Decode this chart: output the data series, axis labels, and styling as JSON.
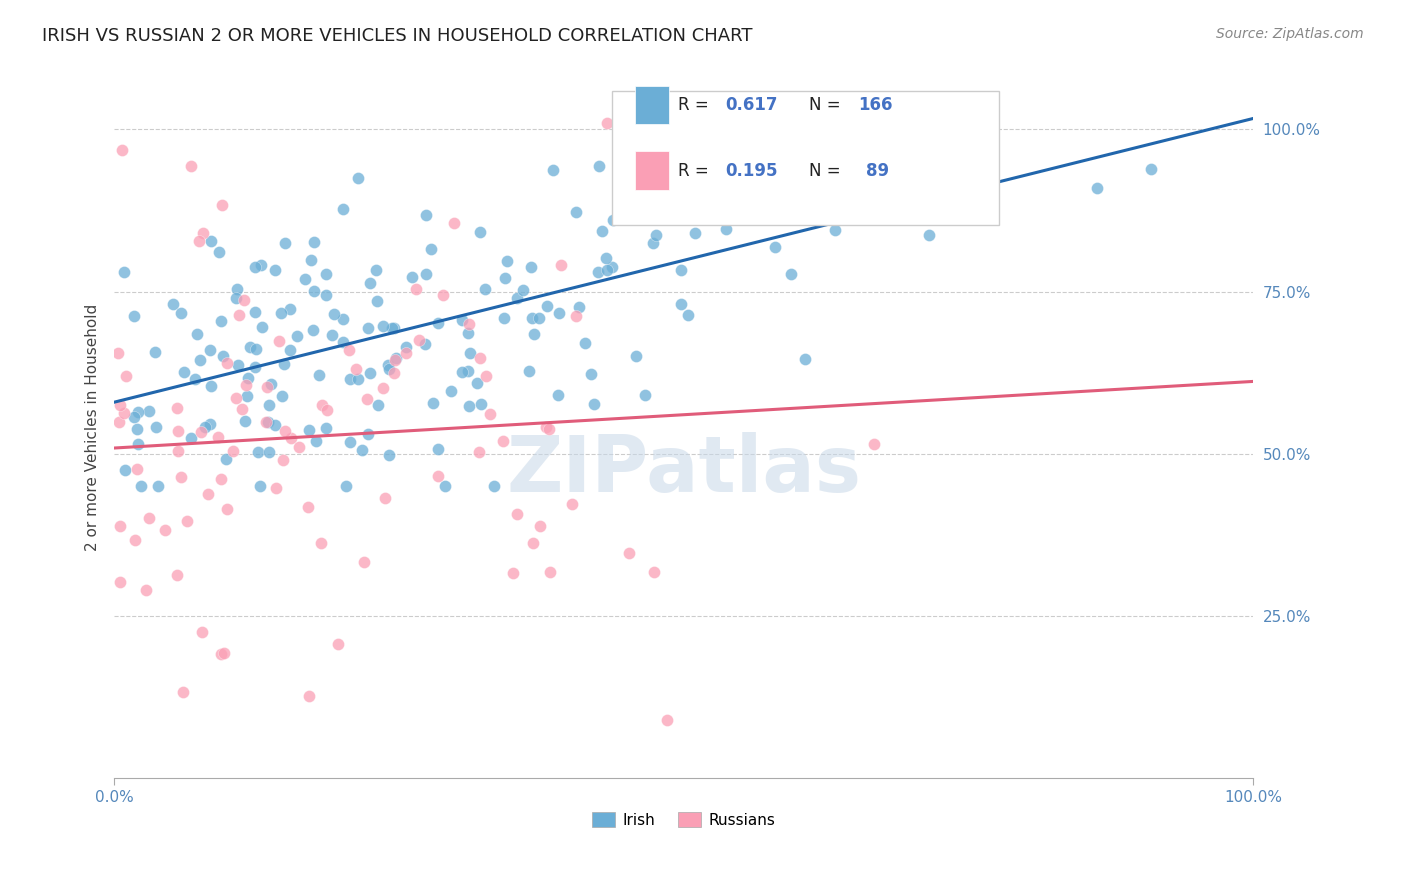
{
  "title": "IRISH VS RUSSIAN 2 OR MORE VEHICLES IN HOUSEHOLD CORRELATION CHART",
  "source": "Source: ZipAtlas.com",
  "ylabel": "2 or more Vehicles in Household",
  "xlim": [
    0.0,
    1.0
  ],
  "ylim": [
    0.0,
    1.08
  ],
  "x_tick_labels": [
    "0.0%",
    "100.0%"
  ],
  "y_tick_labels": [
    "25.0%",
    "50.0%",
    "75.0%",
    "100.0%"
  ],
  "y_tick_positions": [
    0.25,
    0.5,
    0.75,
    1.0
  ],
  "irish_color": "#6baed6",
  "russian_color": "#fa9fb5",
  "irish_line_color": "#2166ac",
  "russian_line_color": "#e05c7a",
  "irish_R": 0.617,
  "irish_N": 166,
  "russian_R": 0.195,
  "russian_N": 89,
  "watermark": "ZIPatlas",
  "legend_irish_label": "Irish",
  "legend_russian_label": "Russians",
  "irish_seed": 42,
  "russian_seed": 7
}
